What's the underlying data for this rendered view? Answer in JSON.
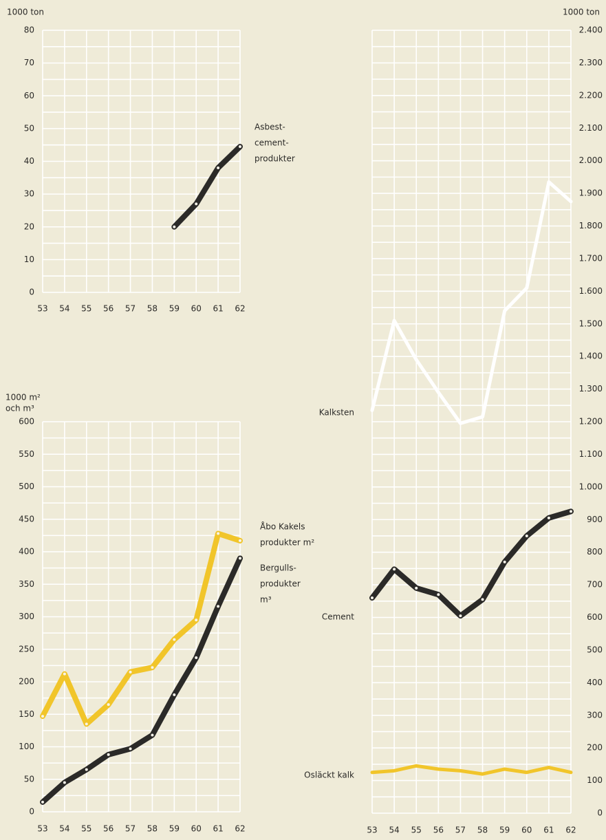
{
  "chart_data": [
    {
      "type": "line",
      "ylabel": [
        "1000 ton"
      ],
      "categories": [
        "53",
        "54",
        "55",
        "56",
        "57",
        "58",
        "59",
        "60",
        "61",
        "62"
      ],
      "ylim": [
        0,
        80
      ],
      "yticks": [
        0,
        10,
        20,
        30,
        40,
        50,
        60,
        70,
        80
      ],
      "minor_yticks": [
        5,
        15,
        25,
        35,
        45,
        55,
        65,
        75
      ],
      "grid": true,
      "y_axis_side": "left",
      "series": [
        {
          "name": [
            "Asbest-",
            "cement-",
            "produkter"
          ],
          "color": "#2b2a28",
          "markers": true,
          "values": [
            null,
            null,
            null,
            null,
            null,
            null,
            20,
            27,
            38,
            44.5
          ]
        }
      ]
    },
    {
      "type": "line",
      "ylabel": [
        "1000 m²",
        "och m³"
      ],
      "categories": [
        "53",
        "54",
        "55",
        "56",
        "57",
        "58",
        "59",
        "60",
        "61",
        "62"
      ],
      "ylim": [
        0,
        600
      ],
      "yticks": [
        0,
        50,
        100,
        150,
        200,
        250,
        300,
        350,
        400,
        450,
        500,
        550,
        600
      ],
      "minor_yticks": [
        25,
        75,
        125,
        175,
        225,
        275,
        325,
        375,
        425,
        475,
        525,
        575
      ],
      "grid": true,
      "y_axis_side": "left",
      "series": [
        {
          "name": [
            "Åbo Kakels",
            "produkter m²"
          ],
          "color": "#f1c52a",
          "markers": true,
          "values": [
            147,
            212,
            135,
            165,
            215,
            222,
            265,
            295,
            428,
            417
          ]
        },
        {
          "name": [
            "Bergulls-",
            "produkter",
            "m³"
          ],
          "color": "#2b2a28",
          "markers": true,
          "values": [
            15,
            45,
            65,
            88,
            97,
            118,
            180,
            237,
            316,
            390
          ]
        }
      ]
    },
    {
      "type": "line",
      "ylabel": [
        "1000 ton"
      ],
      "categories": [
        "53",
        "54",
        "55",
        "56",
        "57",
        "58",
        "59",
        "60",
        "61",
        "62"
      ],
      "ylim": [
        0,
        2400
      ],
      "yticks": [
        0,
        100,
        200,
        300,
        400,
        500,
        600,
        700,
        800,
        900,
        {
          "value": 1000,
          "label": "1.000"
        },
        {
          "value": 1100,
          "label": "1.100"
        },
        {
          "value": 1200,
          "label": "1.200"
        },
        {
          "value": 1300,
          "label": "1.300"
        },
        {
          "value": 1400,
          "label": "1.400"
        },
        {
          "value": 1500,
          "label": "1.500"
        },
        {
          "value": 1600,
          "label": "1.600"
        },
        {
          "value": 1700,
          "label": "1.700"
        },
        {
          "value": 1800,
          "label": "1.800"
        },
        {
          "value": 1900,
          "label": "1.900"
        },
        {
          "value": 2000,
          "label": "2.000"
        },
        {
          "value": 2100,
          "label": "2.100"
        },
        {
          "value": 2200,
          "label": "2.200"
        },
        {
          "value": 2300,
          "label": "2.300"
        },
        {
          "value": 2400,
          "label": "2.400"
        }
      ],
      "minor_yticks": [
        50,
        150,
        250,
        350,
        450,
        550,
        650,
        750,
        850,
        950,
        1050,
        1150,
        1250,
        1350,
        1450,
        1550,
        1650,
        1750,
        1850,
        1950,
        2050,
        2150,
        2250,
        2350
      ],
      "grid": true,
      "y_axis_side": "right",
      "series": [
        {
          "name": [
            "Kalksten"
          ],
          "color": "#ffffff",
          "markers": false,
          "values": [
            1235,
            1510,
            1390,
            1290,
            1195,
            1215,
            1540,
            1610,
            1935,
            1875
          ]
        },
        {
          "name": [
            "Cement"
          ],
          "color": "#2b2a28",
          "markers": true,
          "values": [
            660,
            748,
            690,
            670,
            605,
            655,
            770,
            850,
            905,
            925
          ]
        },
        {
          "name": [
            "Osläckt kalk"
          ],
          "color": "#f1c52a",
          "markers": false,
          "values": [
            125,
            130,
            145,
            135,
            130,
            120,
            135,
            125,
            140,
            125
          ]
        }
      ]
    }
  ]
}
